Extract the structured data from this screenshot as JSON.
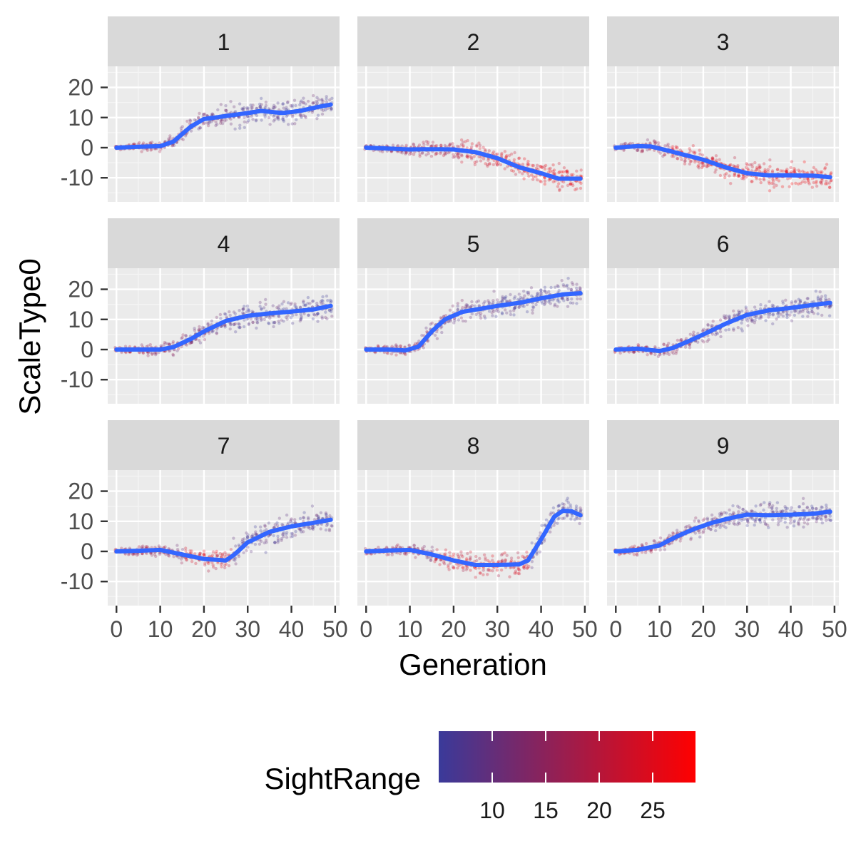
{
  "chart_data": {
    "type": "scatter",
    "facet_var_values": [
      "1",
      "2",
      "3",
      "4",
      "5",
      "6",
      "7",
      "8",
      "9"
    ],
    "xlabel": "Generation",
    "ylabel": "ScaleType0",
    "xlim": [
      -2,
      51
    ],
    "ylim": [
      -18,
      27
    ],
    "x_ticks": [
      0,
      10,
      20,
      30,
      40,
      50
    ],
    "y_ticks": [
      -10,
      0,
      10,
      20
    ],
    "grid": true,
    "legend": {
      "title": "SightRange",
      "position": "bottom",
      "min": 5,
      "max": 29,
      "ticks": [
        10,
        15,
        20,
        25
      ],
      "low_color": "#3a3a9a",
      "high_color": "#ff0000"
    },
    "smooth_color": "#3366ff",
    "panels": [
      {
        "label": "1",
        "trend": [
          [
            0,
            0
          ],
          [
            5,
            0.3
          ],
          [
            10,
            0.5
          ],
          [
            13,
            2
          ],
          [
            17,
            7
          ],
          [
            20,
            9.5
          ],
          [
            25,
            10.5
          ],
          [
            30,
            11.5
          ],
          [
            33,
            12.2
          ],
          [
            38,
            11.5
          ],
          [
            42,
            12.2
          ],
          [
            46,
            13.5
          ],
          [
            49,
            14.3
          ]
        ]
      },
      {
        "label": "2",
        "trend": [
          [
            0,
            0
          ],
          [
            5,
            -0.3
          ],
          [
            10,
            -0.6
          ],
          [
            15,
            -0.5
          ],
          [
            20,
            -0.6
          ],
          [
            25,
            -1.5
          ],
          [
            30,
            -3.5
          ],
          [
            35,
            -6.5
          ],
          [
            40,
            -8.5
          ],
          [
            44,
            -10.3
          ],
          [
            49,
            -10.3
          ]
        ]
      },
      {
        "label": "3",
        "trend": [
          [
            0,
            0
          ],
          [
            5,
            0.5
          ],
          [
            8,
            0.4
          ],
          [
            12,
            -1
          ],
          [
            16,
            -2.5
          ],
          [
            20,
            -4
          ],
          [
            25,
            -6.5
          ],
          [
            30,
            -8.5
          ],
          [
            35,
            -9.2
          ],
          [
            40,
            -9.2
          ],
          [
            45,
            -9.3
          ],
          [
            49,
            -9.8
          ]
        ]
      },
      {
        "label": "4",
        "trend": [
          [
            0,
            0
          ],
          [
            5,
            0
          ],
          [
            10,
            0
          ],
          [
            13,
            0.8
          ],
          [
            17,
            3.5
          ],
          [
            20,
            6
          ],
          [
            25,
            9.5
          ],
          [
            30,
            11.2
          ],
          [
            35,
            12
          ],
          [
            40,
            12.6
          ],
          [
            45,
            13.3
          ],
          [
            49,
            14.5
          ]
        ]
      },
      {
        "label": "5",
        "trend": [
          [
            0,
            0
          ],
          [
            5,
            0
          ],
          [
            9,
            -0.3
          ],
          [
            12,
            1
          ],
          [
            15,
            6
          ],
          [
            18,
            10
          ],
          [
            22,
            12.5
          ],
          [
            30,
            14.5
          ],
          [
            35,
            15.5
          ],
          [
            40,
            17
          ],
          [
            45,
            18.3
          ],
          [
            49,
            18.7
          ]
        ]
      },
      {
        "label": "6",
        "trend": [
          [
            0,
            0
          ],
          [
            5,
            0.3
          ],
          [
            10,
            -0.5
          ],
          [
            13,
            0.5
          ],
          [
            17,
            3
          ],
          [
            20,
            5
          ],
          [
            25,
            8.5
          ],
          [
            30,
            11.5
          ],
          [
            35,
            13
          ],
          [
            40,
            13.8
          ],
          [
            45,
            14.8
          ],
          [
            49,
            15.5
          ]
        ]
      },
      {
        "label": "7",
        "trend": [
          [
            0,
            0
          ],
          [
            5,
            0.2
          ],
          [
            10,
            0.5
          ],
          [
            15,
            -1
          ],
          [
            20,
            -2.5
          ],
          [
            25,
            -3
          ],
          [
            27,
            -1
          ],
          [
            30,
            3
          ],
          [
            35,
            6.5
          ],
          [
            40,
            8.3
          ],
          [
            45,
            9.5
          ],
          [
            49,
            10.5
          ]
        ]
      },
      {
        "label": "8",
        "trend": [
          [
            0,
            0
          ],
          [
            5,
            0.3
          ],
          [
            10,
            0.5
          ],
          [
            15,
            -1
          ],
          [
            20,
            -3
          ],
          [
            25,
            -4.5
          ],
          [
            30,
            -4.5
          ],
          [
            35,
            -4.3
          ],
          [
            37,
            -3
          ],
          [
            40,
            4
          ],
          [
            43,
            11.5
          ],
          [
            45,
            13.5
          ],
          [
            47,
            13.3
          ],
          [
            49,
            12
          ]
        ]
      },
      {
        "label": "9",
        "trend": [
          [
            0,
            0
          ],
          [
            5,
            0.5
          ],
          [
            10,
            2
          ],
          [
            14,
            5
          ],
          [
            18,
            7.5
          ],
          [
            22,
            9.5
          ],
          [
            26,
            11
          ],
          [
            30,
            12.2
          ],
          [
            35,
            12
          ],
          [
            40,
            12.2
          ],
          [
            45,
            12.5
          ],
          [
            49,
            13.2
          ]
        ]
      }
    ]
  }
}
